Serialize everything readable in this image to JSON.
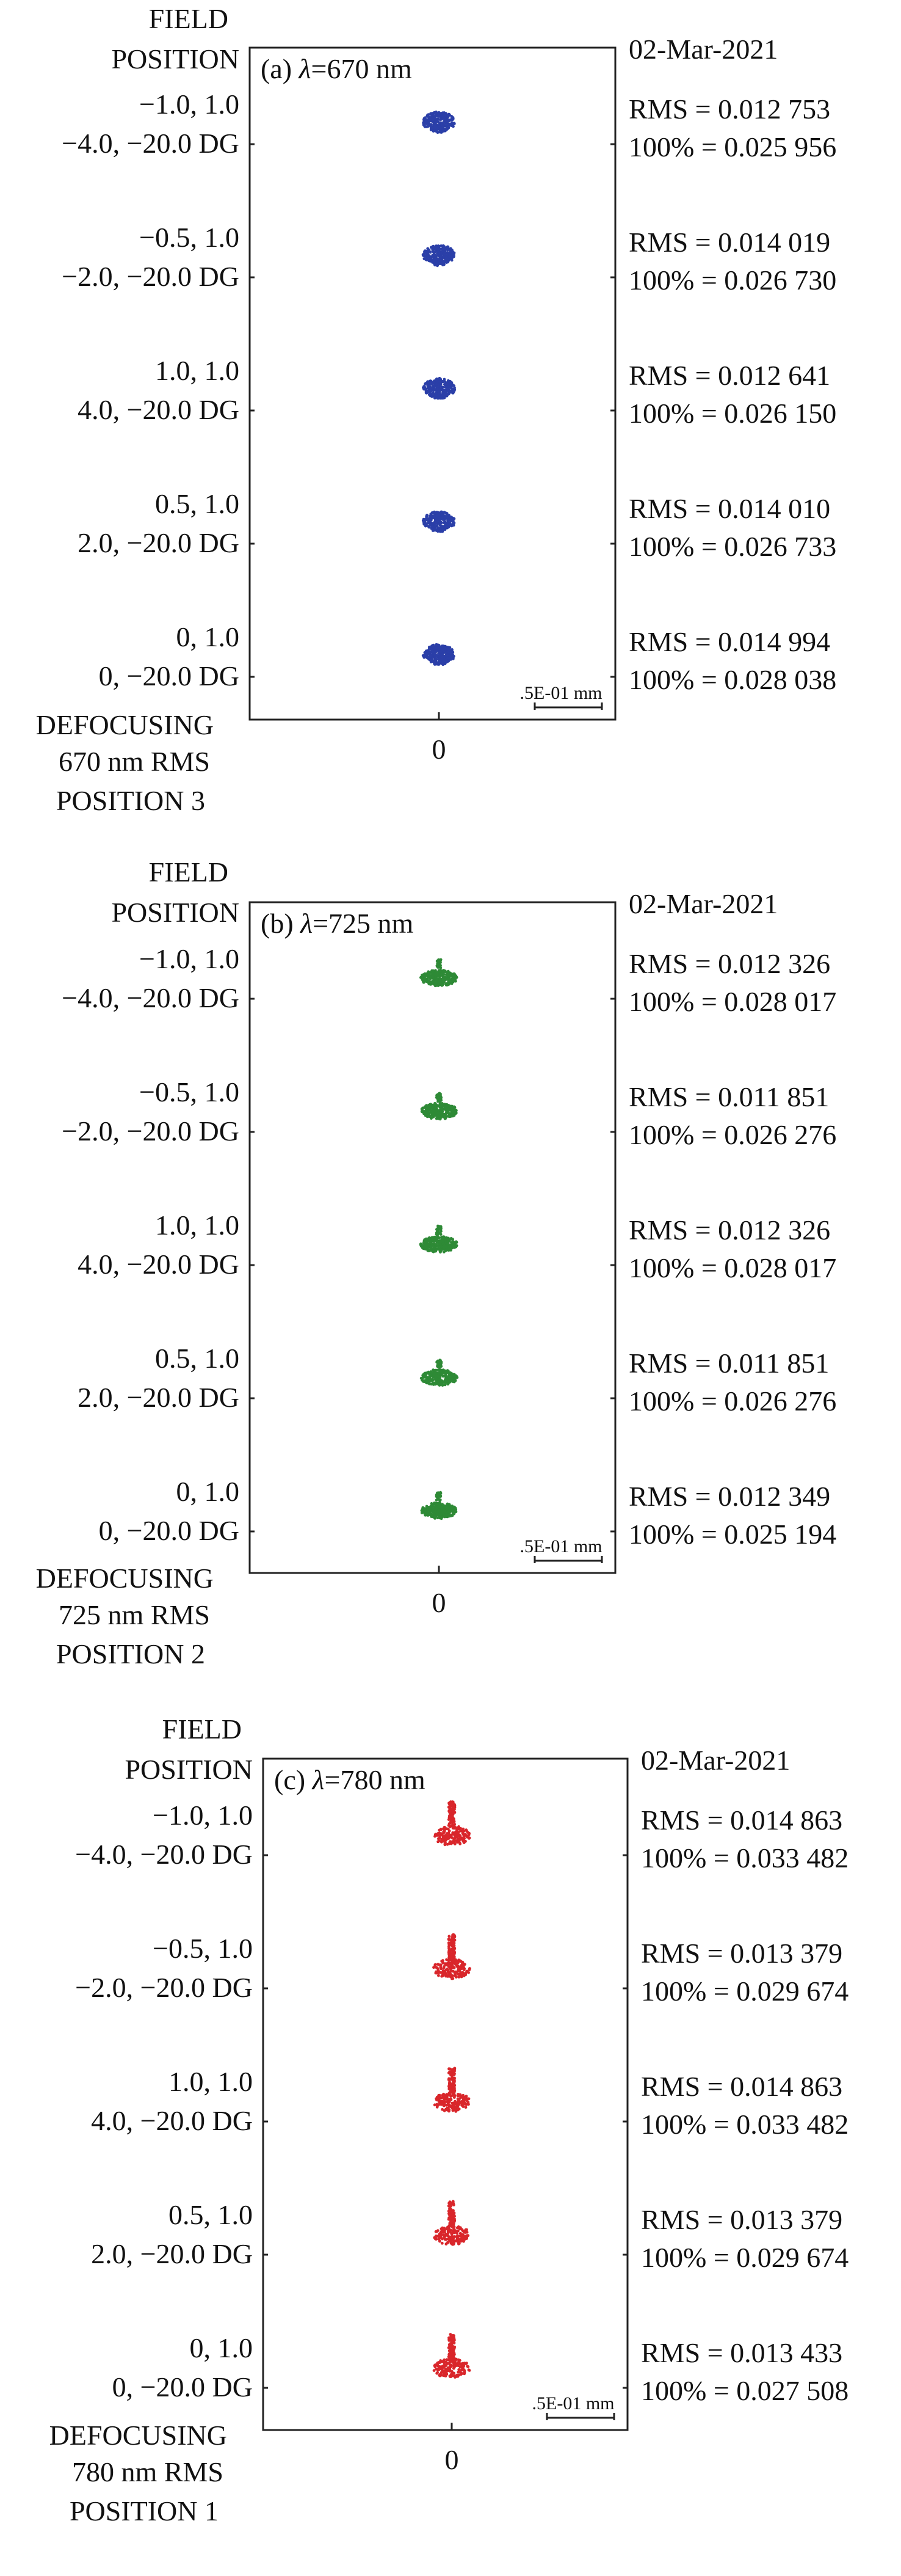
{
  "labels": {
    "field": "FIELD",
    "position": "POSITION",
    "defocusing": "DEFOCUSING",
    "zero_tick": "0",
    "scale_bar": ".5E-01 mm"
  },
  "diagrams": [
    {
      "id": "a",
      "tag": "(a) ",
      "lambda_symbol": "λ",
      "wavelength": "=670 nm",
      "date": "02-Mar-2021",
      "caption_line1": "670 nm RMS",
      "caption_line2": "POSITION 3",
      "spot_color": "#2b3fa8",
      "spot_shape": "compact",
      "fields": [
        {
          "coord": "−1.0, 1.0",
          "defocus": "−4.0, −20.0 DG",
          "rms": "RMS = 0.012 753",
          "pct": "100% = 0.025 956"
        },
        {
          "coord": "−0.5, 1.0",
          "defocus": "−2.0, −20.0 DG",
          "rms": "RMS = 0.014 019",
          "pct": "100% = 0.026 730"
        },
        {
          "coord": "1.0, 1.0",
          "defocus": "4.0, −20.0 DG",
          "rms": "RMS = 0.012 641",
          "pct": "100% = 0.026 150"
        },
        {
          "coord": "0.5, 1.0",
          "defocus": "2.0, −20.0 DG",
          "rms": "RMS = 0.014 010",
          "pct": "100% = 0.026 733"
        },
        {
          "coord": "0, 1.0",
          "defocus": "0, −20.0 DG",
          "rms": "RMS = 0.014 994",
          "pct": "100% = 0.028 038"
        }
      ]
    },
    {
      "id": "b",
      "tag": "(b) ",
      "lambda_symbol": "λ",
      "wavelength": "=725 nm",
      "date": "02-Mar-2021",
      "caption_line1": "725 nm RMS",
      "caption_line2": "POSITION 2",
      "spot_color": "#2e8a36",
      "spot_shape": "flat",
      "fields": [
        {
          "coord": "−1.0, 1.0",
          "defocus": "−4.0, −20.0 DG",
          "rms": "RMS = 0.012 326",
          "pct": "100% = 0.028 017"
        },
        {
          "coord": "−0.5, 1.0",
          "defocus": "−2.0, −20.0 DG",
          "rms": "RMS = 0.011 851",
          "pct": "100% = 0.026 276"
        },
        {
          "coord": "1.0, 1.0",
          "defocus": "4.0, −20.0 DG",
          "rms": "RMS = 0.012 326",
          "pct": "100% = 0.028 017"
        },
        {
          "coord": "0.5, 1.0",
          "defocus": "2.0, −20.0 DG",
          "rms": "RMS = 0.011 851",
          "pct": "100% = 0.026 276"
        },
        {
          "coord": "0, 1.0",
          "defocus": "0, −20.0 DG",
          "rms": "RMS = 0.012 349",
          "pct": "100% = 0.025 194"
        }
      ]
    },
    {
      "id": "c",
      "tag": "(c) ",
      "lambda_symbol": "λ",
      "wavelength": "=780 nm",
      "date": "02-Mar-2021",
      "caption_line1": "780 nm RMS",
      "caption_line2": "POSITION 1",
      "spot_color": "#d9262b",
      "spot_shape": "tall",
      "fields": [
        {
          "coord": "−1.0, 1.0",
          "defocus": "−4.0, −20.0 DG",
          "rms": "RMS = 0.014 863",
          "pct": "100% = 0.033 482"
        },
        {
          "coord": "−0.5, 1.0",
          "defocus": "−2.0, −20.0 DG",
          "rms": "RMS = 0.013 379",
          "pct": "100% = 0.029 674"
        },
        {
          "coord": "1.0, 1.0",
          "defocus": "4.0, −20.0 DG",
          "rms": "RMS = 0.014 863",
          "pct": "100% = 0.033 482"
        },
        {
          "coord": "0.5, 1.0",
          "defocus": "2.0, −20.0 DG",
          "rms": "RMS = 0.013 379",
          "pct": "100% = 0.029 674"
        },
        {
          "coord": "0, 1.0",
          "defocus": "0, −20.0 DG",
          "rms": "RMS = 0.013 433",
          "pct": "100% = 0.027 508"
        }
      ]
    }
  ]
}
